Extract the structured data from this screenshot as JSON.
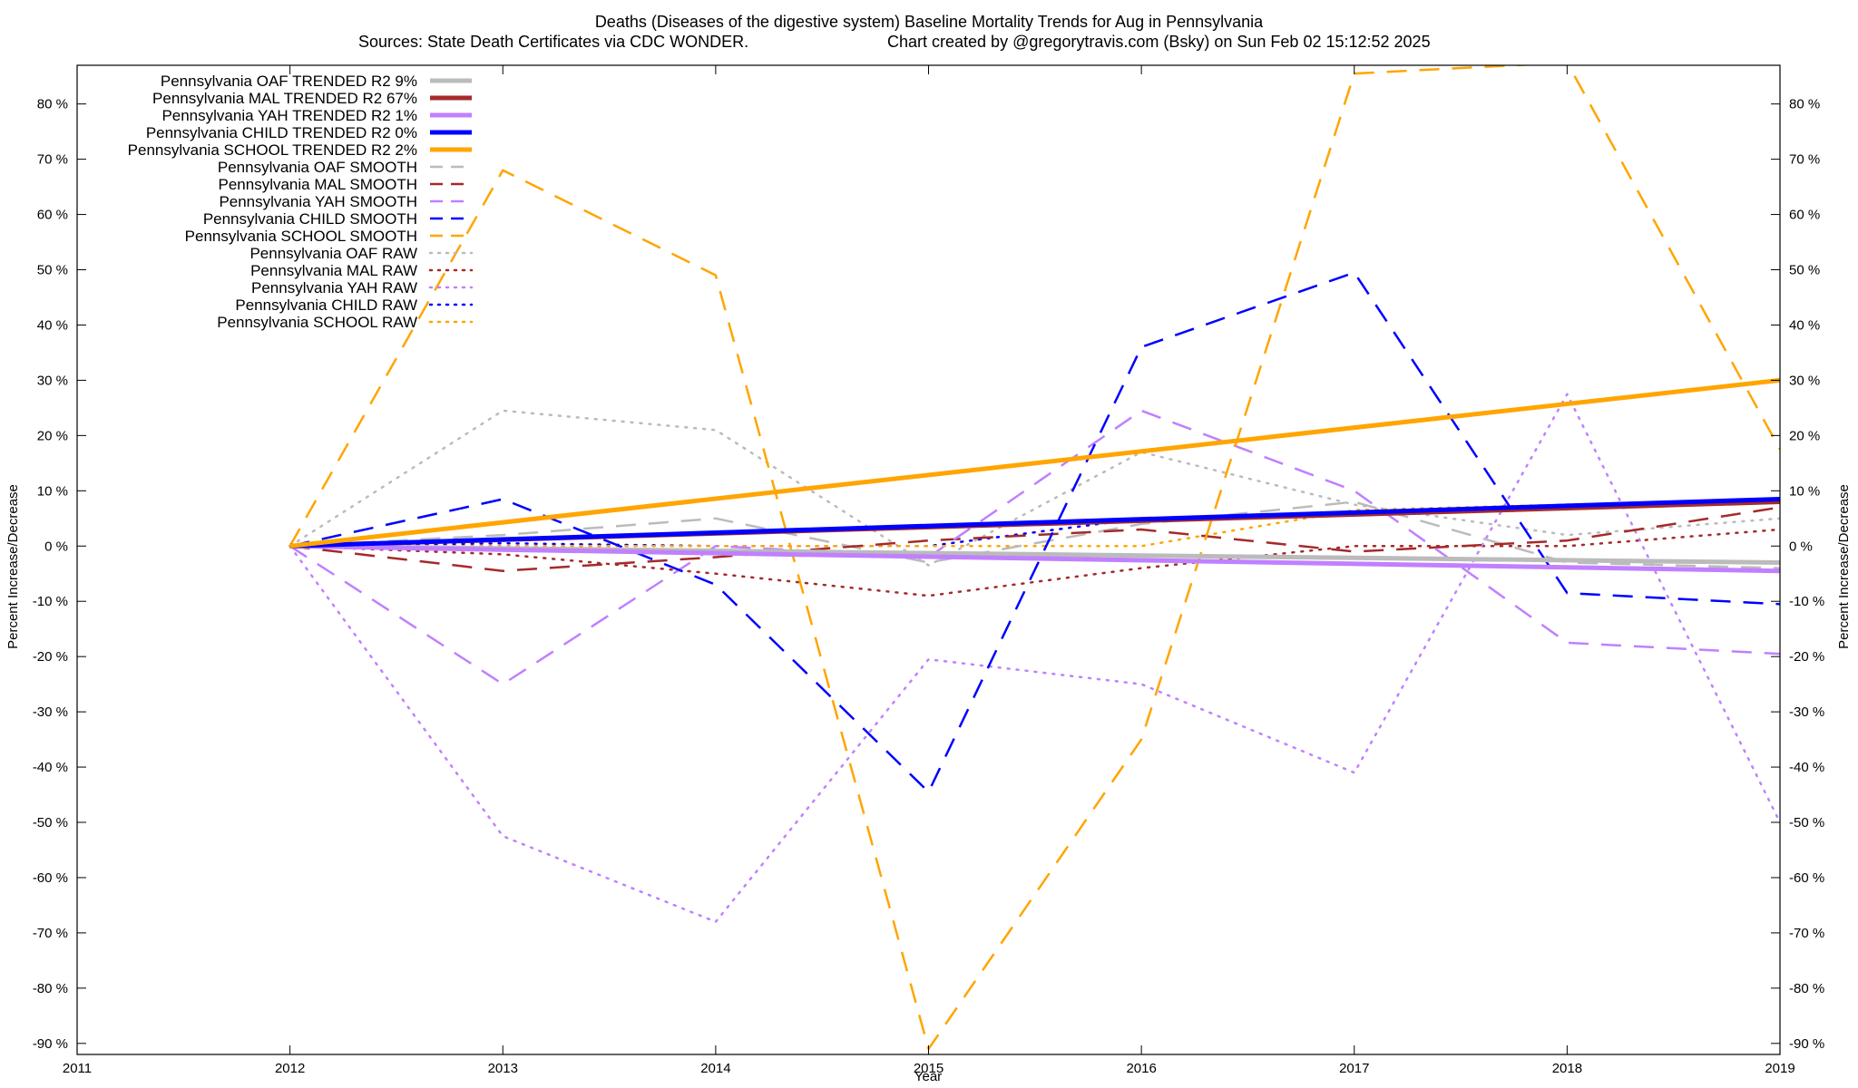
{
  "chart_data": {
    "type": "line",
    "title": "Deaths (Diseases of the digestive system)  Baseline Mortality Trends for Aug in Pennsylvania",
    "subtitle_left": "Sources: State Death Certificates via CDC WONDER.",
    "subtitle_right": "Chart created by @gregorytravis.com (Bsky) on Sun Feb 02 15:12:52 2025",
    "xlabel": "Year",
    "ylabel_left": "Percent Increase/Decrease",
    "ylabel_right": "Percent Increase/Decrease",
    "xlim": [
      2011,
      2019
    ],
    "ylim": [
      -92,
      87
    ],
    "x_ticks": [
      2011,
      2012,
      2013,
      2014,
      2015,
      2016,
      2017,
      2018,
      2019
    ],
    "y_ticks": [
      -90,
      -80,
      -70,
      -60,
      -50,
      -40,
      -30,
      -20,
      -10,
      0,
      10,
      20,
      30,
      40,
      50,
      60,
      70,
      80
    ],
    "y_tick_suffix": " %",
    "grid": false,
    "legend_position": "top-left",
    "series": [
      {
        "name": "Pennsylvania OAF TRENDED R2   9%",
        "color": "#bbbbbb",
        "style": "solid",
        "x": [
          2012,
          2019
        ],
        "y": [
          0,
          -3
        ]
      },
      {
        "name": "Pennsylvania MAL TRENDED R2  67%",
        "color": "#a52a2a",
        "style": "solid",
        "x": [
          2012,
          2019
        ],
        "y": [
          0,
          8
        ]
      },
      {
        "name": "Pennsylvania YAH TRENDED R2   1%",
        "color": "#c080ff",
        "style": "solid",
        "x": [
          2012,
          2019
        ],
        "y": [
          0,
          -4.5
        ]
      },
      {
        "name": "Pennsylvania CHILD TRENDED R2   0%",
        "color": "#0000ff",
        "style": "solid",
        "x": [
          2012,
          2019
        ],
        "y": [
          0,
          8.5
        ]
      },
      {
        "name": "Pennsylvania SCHOOL TRENDED R2   2%",
        "color": "#ffa500",
        "style": "solid",
        "x": [
          2012,
          2019
        ],
        "y": [
          0,
          30
        ]
      },
      {
        "name": "Pennsylvania OAF SMOOTH",
        "color": "#bbbbbb",
        "style": "dashed",
        "x": [
          2012,
          2013,
          2014,
          2015,
          2016,
          2017,
          2018,
          2019
        ],
        "y": [
          0,
          2,
          5,
          -3,
          4,
          8,
          -3,
          -4
        ]
      },
      {
        "name": "Pennsylvania MAL SMOOTH",
        "color": "#a52a2a",
        "style": "dashed",
        "x": [
          2012,
          2013,
          2014,
          2015,
          2016,
          2017,
          2018,
          2019
        ],
        "y": [
          0,
          -4.5,
          -2,
          1,
          3,
          -1,
          1,
          7
        ]
      },
      {
        "name": "Pennsylvania YAH SMOOTH",
        "color": "#c080ff",
        "style": "dashed",
        "x": [
          2012,
          2013,
          2014,
          2015,
          2016,
          2017,
          2018,
          2019
        ],
        "y": [
          0,
          -25,
          0,
          -2,
          24.5,
          10,
          -17.5,
          -19.5
        ]
      },
      {
        "name": "Pennsylvania CHILD SMOOTH",
        "color": "#0000ff",
        "style": "dashed",
        "x": [
          2012,
          2013,
          2014,
          2015,
          2016,
          2017,
          2018,
          2019
        ],
        "y": [
          0,
          8.5,
          -7,
          -44.5,
          36,
          49.5,
          -8.5,
          -10.5
        ]
      },
      {
        "name": "Pennsylvania SCHOOL SMOOTH",
        "color": "#ffa500",
        "style": "dashed",
        "x": [
          2012,
          2013,
          2014,
          2015,
          2016,
          2017,
          2018,
          2019
        ],
        "y": [
          0,
          68,
          49,
          -91,
          -35,
          85.5,
          87.5,
          17.5
        ]
      },
      {
        "name": "Pennsylvania OAF RAW",
        "color": "#bbbbbb",
        "style": "dotted",
        "x": [
          2012,
          2013,
          2014,
          2015,
          2016,
          2017,
          2018,
          2019
        ],
        "y": [
          0,
          24.5,
          21,
          -3.5,
          17,
          7.5,
          2,
          5
        ]
      },
      {
        "name": "Pennsylvania MAL RAW",
        "color": "#a52a2a",
        "style": "dotted",
        "x": [
          2012,
          2013,
          2014,
          2015,
          2016,
          2017,
          2018,
          2019
        ],
        "y": [
          0,
          -1.5,
          -5,
          -9,
          -4,
          0,
          0,
          3
        ]
      },
      {
        "name": "Pennsylvania YAH RAW",
        "color": "#c080ff",
        "style": "dotted",
        "x": [
          2012,
          2013,
          2014,
          2015,
          2016,
          2017,
          2018,
          2019
        ],
        "y": [
          0,
          -52.5,
          -68,
          -20.5,
          -25,
          -41,
          27.5,
          -50
        ]
      },
      {
        "name": "Pennsylvania CHILD RAW",
        "color": "#0000ff",
        "style": "dotted",
        "x": [
          2012,
          2013,
          2014,
          2015,
          2016,
          2017,
          2018,
          2019
        ],
        "y": [
          0,
          0.5,
          0,
          0,
          5,
          6,
          7.5,
          8
        ]
      },
      {
        "name": "Pennsylvania SCHOOL RAW",
        "color": "#ffa500",
        "style": "dotted",
        "x": [
          2012,
          2013,
          2014,
          2015,
          2016,
          2017,
          2018,
          2019
        ],
        "y": [
          0,
          0,
          0,
          0,
          0,
          6.5,
          7.5,
          8.5
        ]
      }
    ]
  }
}
